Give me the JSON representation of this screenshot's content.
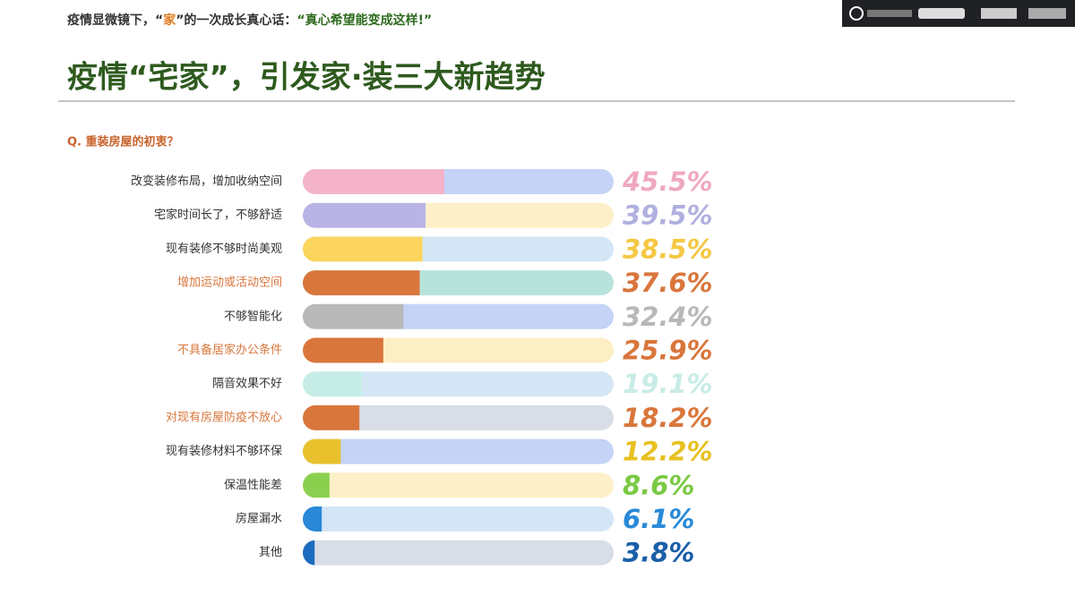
{
  "header": {
    "parts": [
      "疫情显微镜下，“",
      "家",
      "”的一次成长真心话：",
      "“真心希望能变成这样!”"
    ]
  },
  "chart_data": {
    "type": "bar",
    "orientation": "horizontal",
    "title": "疫情“宅家”，引发家·装三大新趋势",
    "subtitle": "Q. 重装房屋的初衷？",
    "categories": [
      "改变装修布局，增加收纳空间",
      "宅家时间长了，不够舒适",
      "现有装修不够时尚美观",
      "增加运动或活动空间",
      "不够智能化",
      "不具备居家办公条件",
      "隔音效果不好",
      "对现有房屋防疫不放心",
      "现有装修材料不够环保",
      "保温性能差",
      "房屋漏水",
      "其他"
    ],
    "values": [
      45.5,
      39.5,
      38.5,
      37.6,
      32.4,
      25.9,
      19.1,
      18.2,
      12.2,
      8.6,
      6.1,
      3.8
    ],
    "value_labels": [
      "45.5%",
      "39.5%",
      "38.5%",
      "37.6%",
      "32.4%",
      "25.9%",
      "19.1%",
      "18.2%",
      "12.2%",
      "8.6%",
      "6.1%",
      "3.8%"
    ],
    "xlim": [
      0,
      100
    ],
    "colors": [
      "#f4b3c8",
      "#b8b4e6",
      "#fbd55e",
      "#d9763c",
      "#b9b9b9",
      "#d9763c",
      "#c5ede6",
      "#d9763c",
      "#e8c12c",
      "#8bcf4f",
      "#2a88d8",
      "#1e6cbf"
    ],
    "track_colors": [
      "#c4d3f6",
      "#fdf0c8",
      "#d4e6f6",
      "#b8e3dc",
      "#c4d3f6",
      "#fcefc4",
      "#d4e6f6",
      "#d8dde8",
      "#c4d3f6",
      "#fdf0c8",
      "#d4e6f6",
      "#d8dde8"
    ],
    "value_label_colors": [
      "#f0a8c0",
      "#b0b0e0",
      "#f5c842",
      "#d9763c",
      "#b8b8b8",
      "#d9763c",
      "#c8ece6",
      "#d9763c",
      "#e8c020",
      "#7ac943",
      "#2a8ad8",
      "#1a5fa8"
    ],
    "label_colors": [
      "#333333",
      "#333333",
      "#333333",
      "#d9763c",
      "#333333",
      "#d9763c",
      "#333333",
      "#d9763c",
      "#333333",
      "#333333",
      "#333333",
      "#333333"
    ]
  }
}
